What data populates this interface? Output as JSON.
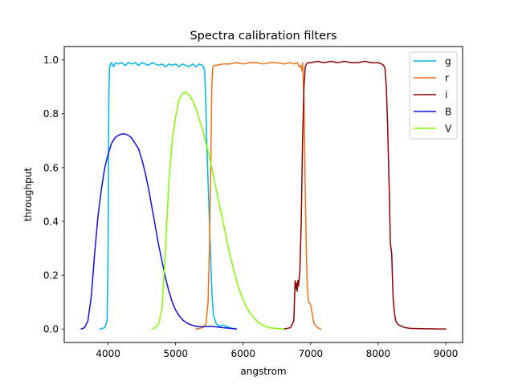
{
  "chart_data": {
    "type": "line",
    "title": "Spectra calibration filters",
    "xlabel": "angstrom",
    "ylabel": "throughput",
    "xlim": [
      3350,
      9250
    ],
    "ylim": [
      -0.05,
      1.05
    ],
    "xticks": [
      4000,
      5000,
      6000,
      7000,
      8000,
      9000
    ],
    "yticks": [
      0.0,
      0.2,
      0.4,
      0.6,
      0.8,
      1.0
    ],
    "xtick_labels": [
      "4000",
      "5000",
      "6000",
      "7000",
      "8000",
      "9000"
    ],
    "ytick_labels": [
      "0.0",
      "0.2",
      "0.4",
      "0.6",
      "0.8",
      "1.0"
    ],
    "grid": false,
    "legend_position": "top-right",
    "series": [
      {
        "name": "g",
        "color": "#00b4ea",
        "x": [
          3880,
          3950,
          3985,
          4000,
          4010,
          4020,
          4030,
          4050,
          4080,
          4110,
          4150,
          4200,
          4250,
          4300,
          4350,
          4400,
          4450,
          4500,
          4550,
          4600,
          4650,
          4700,
          4750,
          4800,
          4850,
          4900,
          4950,
          5000,
          5050,
          5100,
          5150,
          5200,
          5250,
          5300,
          5350,
          5400,
          5430,
          5445,
          5460,
          5480,
          5500,
          5520,
          5540,
          5560,
          5600,
          5650,
          5700,
          5750,
          5800,
          5900
        ],
        "y": [
          0.0,
          0.005,
          0.03,
          0.3,
          0.85,
          0.97,
          0.98,
          0.99,
          0.975,
          0.99,
          0.985,
          0.99,
          0.98,
          0.99,
          0.985,
          0.99,
          0.98,
          0.99,
          0.985,
          0.98,
          0.99,
          0.985,
          0.98,
          0.985,
          0.975,
          0.985,
          0.98,
          0.985,
          0.975,
          0.985,
          0.98,
          0.975,
          0.985,
          0.975,
          0.985,
          0.98,
          0.96,
          0.85,
          0.7,
          0.55,
          0.4,
          0.25,
          0.12,
          0.05,
          0.02,
          0.01,
          0.015,
          0.01,
          0.005,
          0.0
        ]
      },
      {
        "name": "r",
        "color": "#f07016",
        "x": [
          5300,
          5400,
          5450,
          5480,
          5500,
          5520,
          5535,
          5550,
          5570,
          5600,
          5700,
          5800,
          5900,
          6000,
          6100,
          6200,
          6300,
          6400,
          6500,
          6600,
          6700,
          6750,
          6800,
          6830,
          6850,
          6870,
          6880,
          6890,
          6900,
          6910,
          6920,
          6935,
          6950,
          6970,
          7000,
          7020,
          7050,
          7100,
          7150
        ],
        "y": [
          0.0,
          0.005,
          0.02,
          0.1,
          0.3,
          0.6,
          0.9,
          0.975,
          0.98,
          0.98,
          0.985,
          0.985,
          0.99,
          0.985,
          0.99,
          0.99,
          0.985,
          0.99,
          0.99,
          0.985,
          0.99,
          0.985,
          0.99,
          0.975,
          0.98,
          0.96,
          0.99,
          0.93,
          0.85,
          0.7,
          0.5,
          0.3,
          0.15,
          0.1,
          0.09,
          0.06,
          0.02,
          0.005,
          0.0
        ]
      },
      {
        "name": "i",
        "color": "#8b0000",
        "x": [
          6600,
          6700,
          6750,
          6770,
          6780,
          6790,
          6800,
          6810,
          6820,
          6840,
          6860,
          6880,
          6900,
          6920,
          6940,
          6960,
          7000,
          7100,
          7200,
          7300,
          7400,
          7500,
          7600,
          7700,
          7800,
          7900,
          8000,
          8050,
          8080,
          8100,
          8120,
          8140,
          8160,
          8170,
          8180,
          8190,
          8200,
          8210,
          8220,
          8240,
          8260,
          8300,
          8400,
          8500,
          8700,
          9000
        ],
        "y": [
          0.0,
          0.005,
          0.03,
          0.18,
          0.15,
          0.17,
          0.14,
          0.18,
          0.16,
          0.22,
          0.4,
          0.7,
          0.9,
          0.975,
          0.985,
          0.99,
          0.99,
          0.995,
          0.99,
          0.995,
          0.99,
          0.995,
          0.99,
          0.99,
          0.995,
          0.99,
          0.99,
          0.985,
          0.98,
          0.97,
          0.9,
          0.75,
          0.55,
          0.45,
          0.32,
          0.3,
          0.28,
          0.2,
          0.12,
          0.06,
          0.03,
          0.015,
          0.005,
          0.002,
          0.001,
          0.0
        ]
      },
      {
        "name": "B",
        "color": "#1010e0",
        "x": [
          3600,
          3650,
          3700,
          3750,
          3800,
          3850,
          3900,
          3950,
          4000,
          4050,
          4100,
          4150,
          4200,
          4250,
          4300,
          4350,
          4400,
          4450,
          4500,
          4550,
          4600,
          4650,
          4700,
          4750,
          4800,
          4850,
          4900,
          4950,
          5000,
          5050,
          5100,
          5150,
          5200,
          5300,
          5400,
          5500,
          5600,
          5700,
          5800,
          5900
        ],
        "y": [
          0.0,
          0.005,
          0.03,
          0.12,
          0.28,
          0.42,
          0.52,
          0.6,
          0.65,
          0.69,
          0.71,
          0.72,
          0.725,
          0.725,
          0.72,
          0.71,
          0.69,
          0.67,
          0.63,
          0.58,
          0.52,
          0.45,
          0.38,
          0.31,
          0.25,
          0.19,
          0.14,
          0.1,
          0.07,
          0.05,
          0.035,
          0.025,
          0.018,
          0.01,
          0.008,
          0.01,
          0.008,
          0.005,
          0.003,
          0.0
        ]
      },
      {
        "name": "V",
        "color": "#7cfc00",
        "x": [
          4650,
          4700,
          4750,
          4800,
          4850,
          4900,
          4950,
          5000,
          5050,
          5100,
          5150,
          5200,
          5250,
          5300,
          5350,
          5400,
          5450,
          5500,
          5550,
          5600,
          5650,
          5700,
          5750,
          5800,
          5850,
          5900,
          5950,
          6000,
          6050,
          6100,
          6150,
          6200,
          6250,
          6300,
          6350,
          6400,
          6450,
          6500,
          6550,
          6600
        ],
        "y": [
          0.0,
          0.005,
          0.02,
          0.08,
          0.3,
          0.55,
          0.7,
          0.79,
          0.85,
          0.875,
          0.88,
          0.87,
          0.85,
          0.82,
          0.78,
          0.74,
          0.69,
          0.64,
          0.58,
          0.52,
          0.46,
          0.4,
          0.34,
          0.28,
          0.23,
          0.18,
          0.14,
          0.11,
          0.08,
          0.06,
          0.045,
          0.03,
          0.02,
          0.013,
          0.008,
          0.005,
          0.003,
          0.002,
          0.001,
          0.0
        ]
      }
    ]
  }
}
